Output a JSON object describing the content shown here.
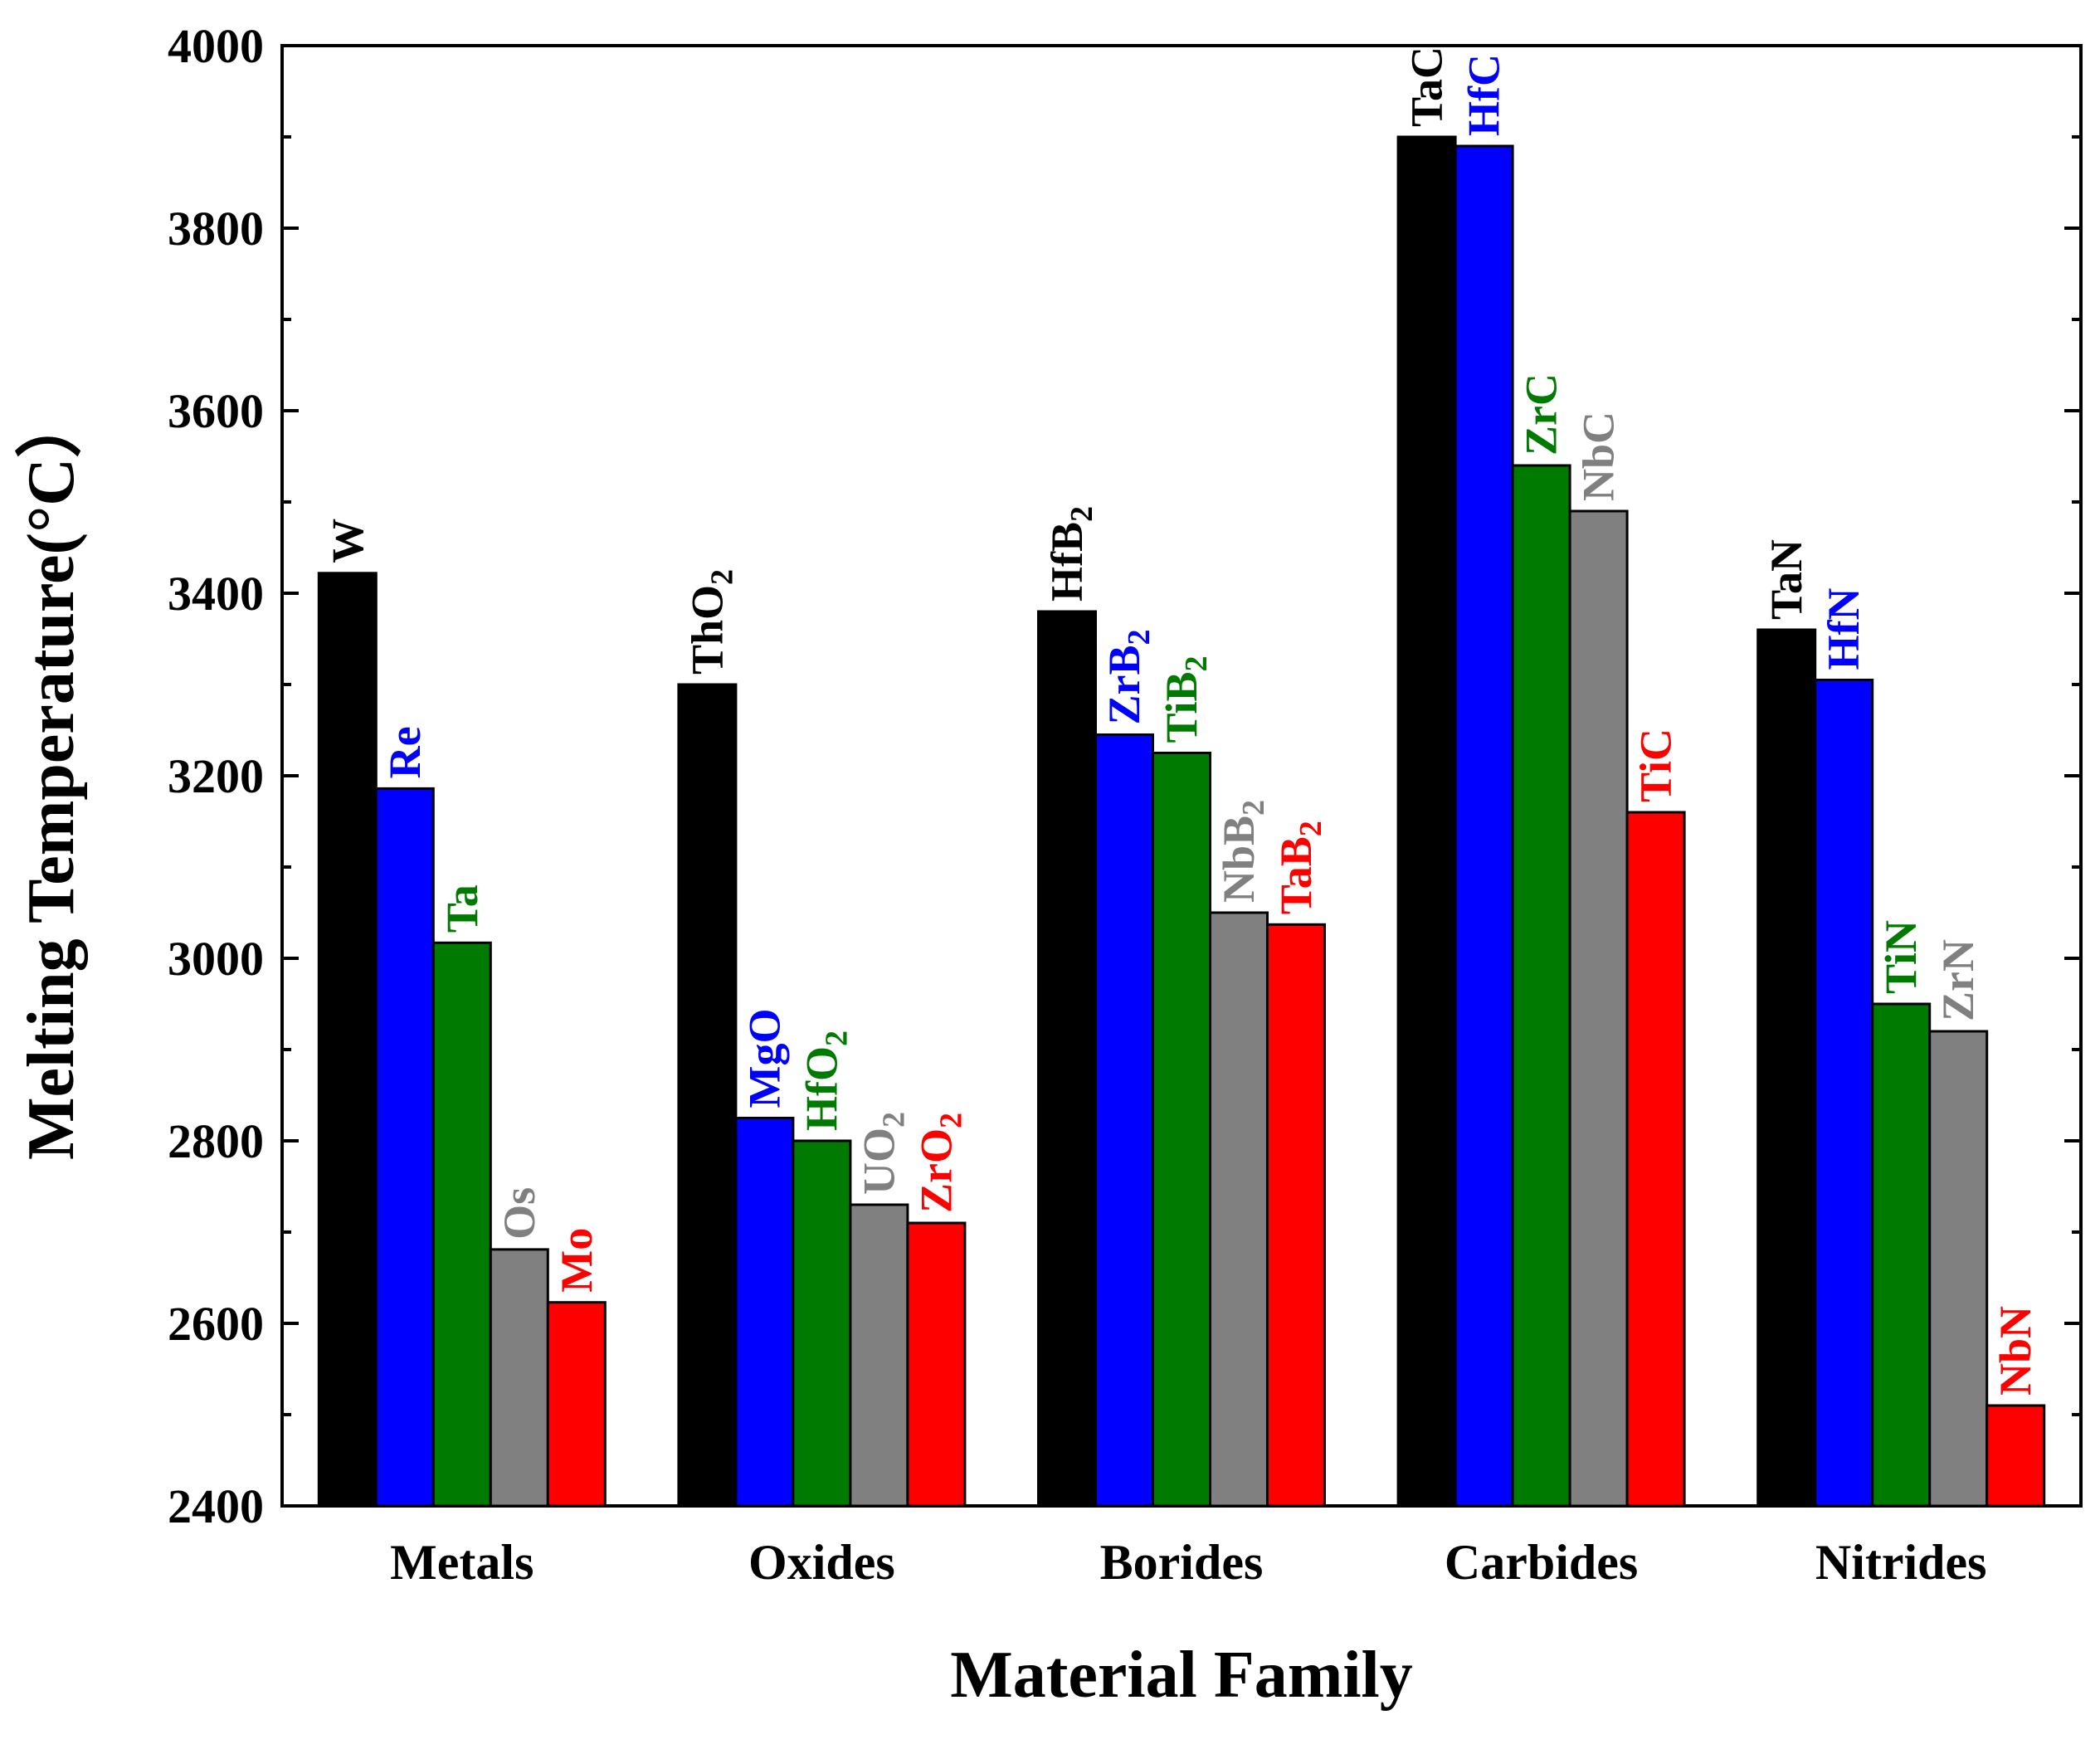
{
  "chart_data": {
    "type": "bar",
    "title": "",
    "xlabel": "Material Family",
    "ylabel": "Melting Temperature(°C）",
    "ylim": [
      2400,
      4000
    ],
    "yticks": [
      2400,
      2600,
      2800,
      3000,
      3200,
      3400,
      3600,
      3800,
      4000
    ],
    "grid": false,
    "legend": "none",
    "categories": [
      "Metals",
      "Oxides",
      "Borides",
      "Carbides",
      "Nitrides"
    ],
    "series_colors": [
      "#000000",
      "#0000ff",
      "#007a00",
      "#808080",
      "#ff0000"
    ],
    "label_colors": [
      "#000000",
      "#0000ff",
      "#007a00",
      "#808080",
      "#ff0000"
    ],
    "groups": [
      {
        "category": "Metals",
        "bars": [
          {
            "label": "W",
            "sub": "",
            "value": 3422
          },
          {
            "label": "Re",
            "sub": "",
            "value": 3186
          },
          {
            "label": "Ta",
            "sub": "",
            "value": 3017
          },
          {
            "label": "Os",
            "sub": "",
            "value": 2681
          },
          {
            "label": "Mo",
            "sub": "",
            "value": 2623
          }
        ]
      },
      {
        "category": "Oxides",
        "bars": [
          {
            "label": "ThO",
            "sub": "2",
            "value": 3300
          },
          {
            "label": "MgO",
            "sub": "",
            "value": 2825
          },
          {
            "label": "HfO",
            "sub": "2",
            "value": 2800
          },
          {
            "label": "UO",
            "sub": "2",
            "value": 2730
          },
          {
            "label": "ZrO",
            "sub": "2",
            "value": 2710
          }
        ]
      },
      {
        "category": "Borides",
        "bars": [
          {
            "label": "HfB",
            "sub": "2",
            "value": 3380
          },
          {
            "label": "ZrB",
            "sub": "2",
            "value": 3245
          },
          {
            "label": "TiB",
            "sub": "2",
            "value": 3225
          },
          {
            "label": "NbB",
            "sub": "2",
            "value": 3050
          },
          {
            "label": "TaB",
            "sub": "2",
            "value": 3037
          }
        ]
      },
      {
        "category": "Carbides",
        "bars": [
          {
            "label": "TaC",
            "sub": "",
            "value": 3900
          },
          {
            "label": "HfC",
            "sub": "",
            "value": 3890
          },
          {
            "label": "ZrC",
            "sub": "",
            "value": 3540
          },
          {
            "label": "NbC",
            "sub": "",
            "value": 3490
          },
          {
            "label": "TiC",
            "sub": "",
            "value": 3160
          }
        ]
      },
      {
        "category": "Nitrides",
        "bars": [
          {
            "label": "TaN",
            "sub": "",
            "value": 3360
          },
          {
            "label": "HfN",
            "sub": "",
            "value": 3305
          },
          {
            "label": "TiN",
            "sub": "",
            "value": 2950
          },
          {
            "label": "ZrN",
            "sub": "",
            "value": 2920
          },
          {
            "label": "NbN",
            "sub": "",
            "value": 2510
          }
        ]
      }
    ]
  }
}
